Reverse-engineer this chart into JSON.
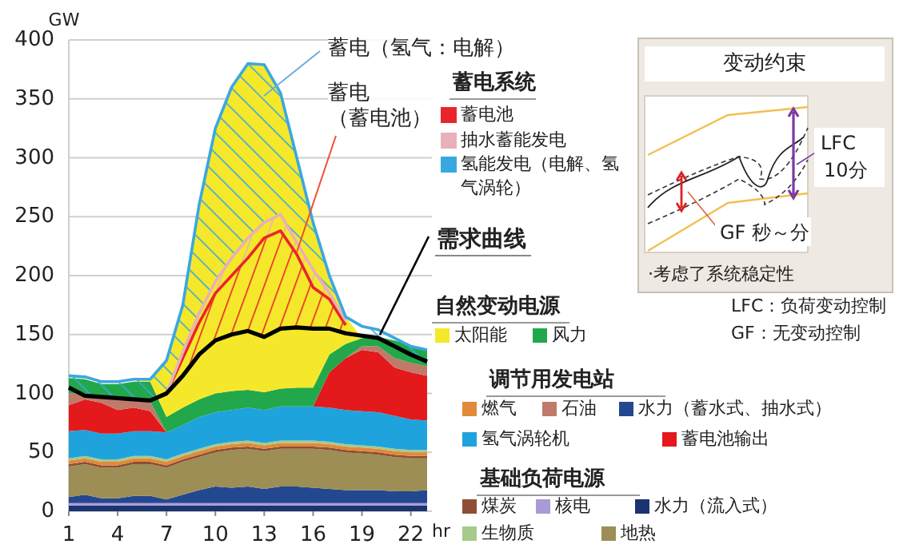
{
  "chart_data": {
    "type": "area",
    "stacked": true,
    "legend": "right",
    "grid": "y",
    "xlabel": "hr",
    "ylabel": "GW",
    "x": [
      1,
      2,
      3,
      4,
      5,
      6,
      7,
      8,
      9,
      10,
      11,
      12,
      13,
      14,
      15,
      16,
      17,
      18,
      19,
      20,
      21,
      22,
      23
    ],
    "xlim": [
      1,
      23
    ],
    "xticks": [
      1,
      4,
      7,
      10,
      13,
      16,
      19,
      22
    ],
    "ylim": [
      0,
      400
    ],
    "yticks": [
      0,
      50,
      100,
      150,
      200,
      250,
      300,
      350,
      400
    ],
    "series": [
      {
        "name": "水力（流入式）",
        "color": "#1b3470",
        "values": [
          5,
          5,
          5,
          5,
          5,
          5,
          5,
          5,
          5,
          5,
          5,
          5,
          5,
          5,
          5,
          5,
          5,
          5,
          5,
          5,
          5,
          5,
          5
        ]
      },
      {
        "name": "核电",
        "color": "#a99ad8",
        "values": [
          2,
          2,
          2,
          2,
          2,
          2,
          2,
          2,
          2,
          2,
          2,
          2,
          2,
          2,
          2,
          2,
          2,
          2,
          2,
          2,
          2,
          2,
          2
        ]
      },
      {
        "name": "水力（蓄水式、抽水式）",
        "color": "#24488f",
        "values": [
          5,
          7,
          4,
          4,
          6,
          6,
          3,
          7,
          11,
          14,
          13,
          14,
          12,
          14,
          14,
          13,
          12,
          11,
          11,
          11,
          10,
          10,
          11
        ]
      },
      {
        "name": "地热",
        "color": "#9c8e55",
        "values": [
          26,
          26,
          26,
          26,
          27,
          27,
          27,
          28,
          28,
          29,
          32,
          32,
          32,
          32,
          32,
          33,
          33,
          32,
          31,
          30,
          29,
          28,
          27
        ]
      },
      {
        "name": "煤炭",
        "color": "#8e4e34",
        "values": [
          2,
          2,
          2,
          2,
          2,
          2,
          2,
          2,
          2,
          2,
          2,
          2,
          2,
          2,
          2,
          2,
          2,
          2,
          2,
          2,
          2,
          2,
          2
        ]
      },
      {
        "name": "燃气",
        "color": "#e08a3a",
        "values": [
          3,
          3,
          3,
          3,
          3,
          3,
          3,
          3,
          3,
          3,
          3,
          3,
          3,
          3,
          3,
          3,
          3,
          3,
          3,
          3,
          3,
          3,
          3
        ]
      },
      {
        "name": "生物质",
        "color": "#a8c98c",
        "values": [
          2,
          2,
          2,
          2,
          2,
          2,
          2,
          2,
          2,
          2,
          2,
          2,
          2,
          2,
          2,
          2,
          2,
          2,
          2,
          2,
          2,
          2,
          2
        ]
      },
      {
        "name": "氢气涡轮机",
        "color": "#1fa3dc",
        "values": [
          23,
          22,
          22,
          22,
          21,
          21,
          23,
          24,
          27,
          27,
          27,
          28,
          28,
          29,
          29,
          29,
          29,
          29,
          29,
          29,
          28,
          26,
          25
        ]
      },
      {
        "name": "蓄电池输出",
        "color": "#e3191c",
        "values": [
          22,
          26,
          26,
          20,
          20,
          17,
          0,
          0,
          0,
          0,
          0,
          0,
          0,
          0,
          0,
          0,
          30,
          44,
          52,
          51,
          41,
          40,
          38
        ]
      },
      {
        "name": "石油",
        "color": "#c07a6a",
        "values": [
          10,
          5,
          5,
          8,
          8,
          8,
          0,
          0,
          0,
          0,
          0,
          0,
          0,
          0,
          0,
          0,
          0,
          0,
          3,
          5,
          8,
          8,
          8
        ]
      },
      {
        "name": "风力",
        "color": "#22a84a",
        "values": [
          13,
          12,
          11,
          14,
          14,
          17,
          13,
          15,
          15,
          16,
          16,
          15,
          15,
          15,
          16,
          16,
          15,
          12,
          7,
          8,
          15,
          15,
          14
        ]
      },
      {
        "name": "太阳能",
        "color": "#f5e82a",
        "values": [
          0,
          0,
          0,
          0,
          0,
          2,
          48,
          87,
          165,
          225,
          258,
          277,
          278,
          251,
          195,
          140,
          67,
          23,
          0,
          0,
          0,
          0,
          0
        ]
      },
      {
        "name": "蓄电池",
        "type": "line",
        "color": "#e8262a",
        "values": [
          null,
          null,
          null,
          null,
          null,
          null,
          100,
          130,
          160,
          185,
          200,
          215,
          232,
          238,
          218,
          190,
          180,
          158,
          null,
          null,
          null,
          null,
          null
        ],
        "upper": [
          null,
          null,
          null,
          null,
          null,
          null,
          100,
          130,
          160,
          185,
          200,
          215,
          232,
          238,
          218,
          190,
          180,
          158,
          null,
          null,
          null,
          null,
          null
        ],
        "lower": [
          null,
          null,
          null,
          null,
          null,
          null,
          100,
          115,
          133,
          145,
          150,
          153,
          148,
          155,
          156,
          155,
          155,
          151,
          null,
          null,
          null,
          null,
          null
        ]
      },
      {
        "name": "抽水蓄能发电",
        "type": "line",
        "color": "#e8b0b8",
        "values": [
          null,
          null,
          null,
          null,
          null,
          null,
          100,
          135,
          168,
          195,
          215,
          232,
          245,
          252,
          228,
          205,
          185,
          162,
          null,
          null,
          null,
          null,
          null
        ],
        "upper": [
          null,
          null,
          null,
          null,
          null,
          null,
          100,
          135,
          168,
          195,
          215,
          232,
          245,
          252,
          228,
          205,
          185,
          162,
          null,
          null,
          null,
          null,
          null
        ],
        "lower": [
          null,
          null,
          null,
          null,
          null,
          null,
          100,
          130,
          160,
          185,
          200,
          215,
          232,
          238,
          218,
          190,
          180,
          158,
          null,
          null,
          null,
          null,
          null
        ]
      },
      {
        "name": "氢能发电（电解、氢气涡轮）",
        "type": "line",
        "color": "#3aa8e0",
        "values": [
          115,
          114,
          110,
          110,
          112,
          112,
          128,
          175,
          260,
          325,
          360,
          380,
          379,
          355,
          300,
          245,
          200,
          165,
          157,
          154,
          147,
          140,
          137
        ],
        "upper": [
          115,
          114,
          110,
          110,
          112,
          112,
          128,
          175,
          260,
          325,
          360,
          380,
          379,
          355,
          300,
          245,
          200,
          165,
          157,
          154,
          147,
          140,
          137
        ],
        "lower": [
          105,
          98,
          97,
          96,
          95,
          94,
          100,
          135,
          168,
          195,
          215,
          232,
          245,
          252,
          228,
          205,
          185,
          162,
          149,
          147,
          140,
          133,
          127
        ]
      },
      {
        "name": "需求曲线",
        "type": "line",
        "color": "#000000",
        "values": [
          105,
          98,
          97,
          96,
          95,
          94,
          100,
          115,
          133,
          145,
          150,
          153,
          148,
          155,
          156,
          155,
          155,
          151,
          149,
          147,
          140,
          133,
          127
        ]
      }
    ],
    "annotations": [
      "蓄电（氢气：电解）",
      {
        "text": "蓄电（蓄电池）",
        "x": 15,
        "y": 220
      },
      "蓄电系统",
      "自然变动电源",
      "调节用发电站",
      "基础负荷电源",
      "变动约束",
      "LFC",
      "10分",
      "GF 秒～分",
      "·考虑了系统稳定性",
      "LFC：负荷变动控制",
      "GF：无变动控制"
    ]
  }
}
